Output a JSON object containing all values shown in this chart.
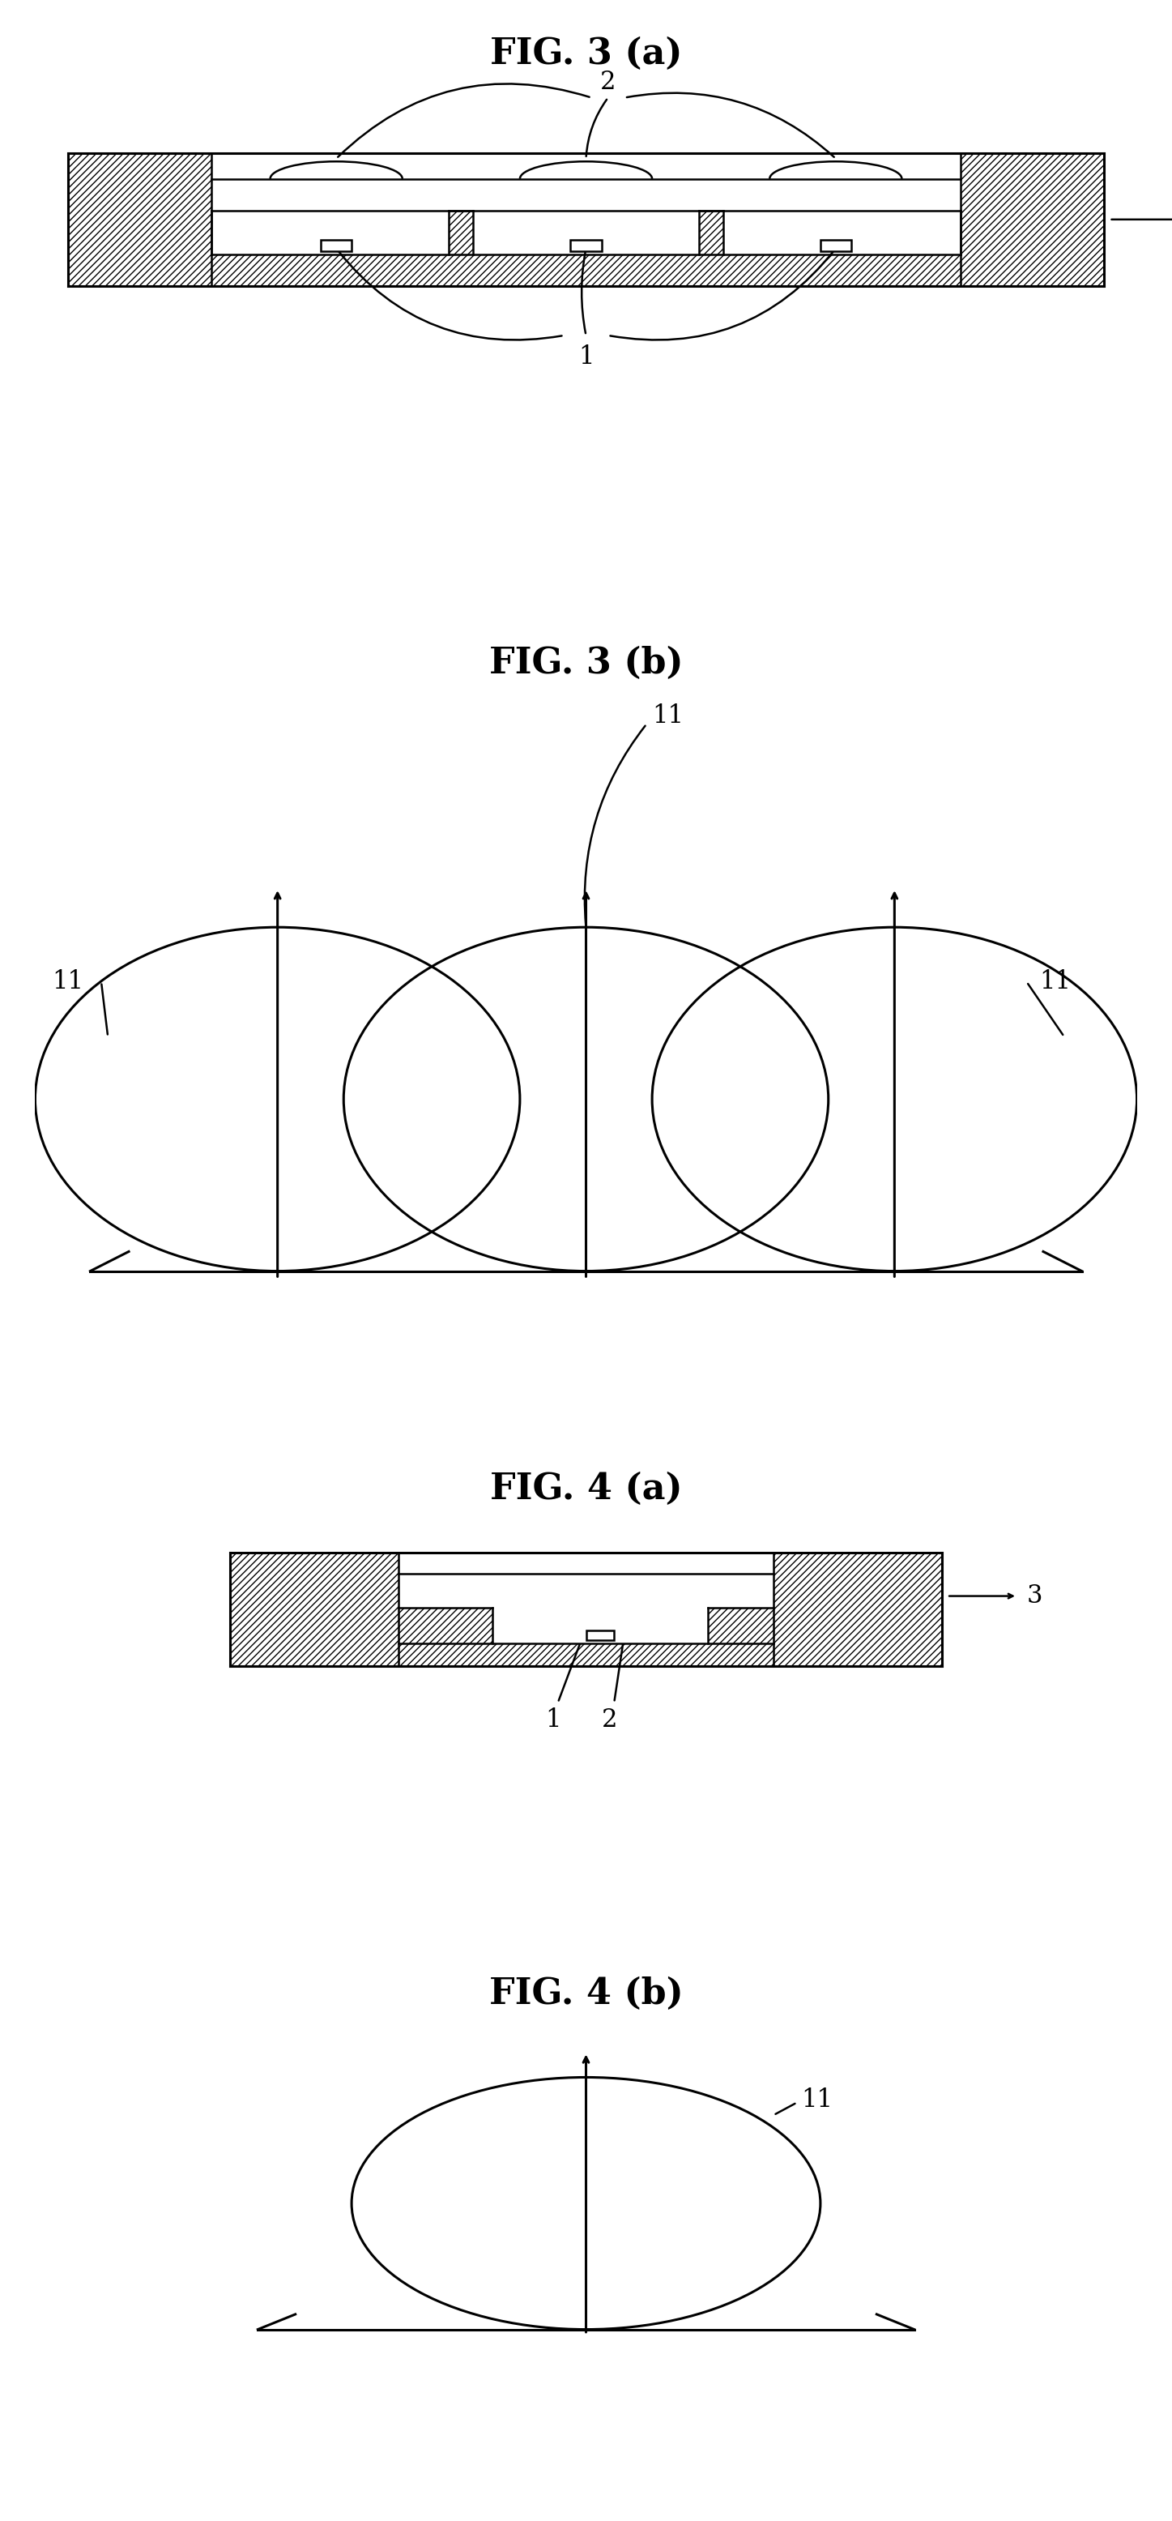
{
  "bg_color": "#ffffff",
  "fig_width": 14.47,
  "fig_height": 31.11,
  "titles": [
    "FIG. 3 (a)",
    "FIG. 3 (b)",
    "FIG. 4 (a)",
    "FIG. 4 (b)"
  ],
  "title_fontsize": 32,
  "label_fontsize": 22,
  "lw": 1.8,
  "lw_thick": 2.2
}
